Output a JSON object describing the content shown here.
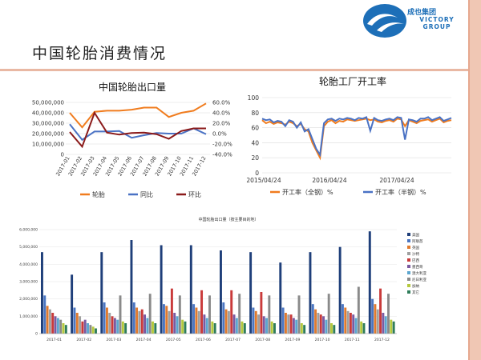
{
  "logo": {
    "cn": "成也集团",
    "en_line1": "VICTORY",
    "en_line2": "GROUP"
  },
  "slide": {
    "title": "中国轮胎消费情况"
  },
  "chart_data": [
    {
      "type": "line",
      "title": "中国轮胎出口量",
      "categories": [
        "2017-01",
        "2017-02",
        "2017-03",
        "2017-04",
        "2017-05",
        "2017-06",
        "2017-07",
        "2017-08",
        "2017-09",
        "2017-10",
        "2017-11",
        "2017-12"
      ],
      "y_left": {
        "ticks": [
          "0",
          "10,000,000",
          "20,000,000",
          "30,000,000",
          "40,000,000",
          "50,000,000"
        ],
        "range": [
          0,
          50000000
        ]
      },
      "y_right": {
        "ticks": [
          "-40.0%",
          "-20.0%",
          "0.0%",
          "20.0%",
          "40.0%",
          "60.0%"
        ],
        "range": [
          -40,
          60
        ]
      },
      "series": [
        {
          "name": "轮胎",
          "axis": "left",
          "color": "#f07c1e",
          "values": [
            40000000,
            26000000,
            41000000,
            42000000,
            42000000,
            43000000,
            45000000,
            45000000,
            36000000,
            40000000,
            42000000,
            49000000
          ]
        },
        {
          "name": "同比",
          "axis": "right",
          "color": "#4a72c4",
          "values": [
            18,
            -12,
            4,
            4,
            5,
            -8,
            -3,
            1,
            0,
            0,
            10,
            -1
          ]
        },
        {
          "name": "环比",
          "axis": "right",
          "color": "#8b1a1a",
          "values": [
            3,
            -25,
            40,
            2,
            -2,
            1,
            2,
            -1,
            -10,
            5,
            10,
            10
          ]
        }
      ]
    },
    {
      "type": "line",
      "title": "轮胎工厂开工率",
      "x_ticks": [
        "2015/04/24",
        "2016/04/24",
        "2017/04/24"
      ],
      "y_ticks": [
        "0",
        "20",
        "40",
        "60",
        "80",
        "100"
      ],
      "ylim": [
        0,
        100
      ],
      "series": [
        {
          "name": "开工率（全钢）%",
          "color": "#f07c1e",
          "values": [
            70,
            66,
            68,
            65,
            67,
            66,
            64,
            68,
            66,
            62,
            65,
            58,
            55,
            40,
            30,
            20,
            62,
            68,
            70,
            66,
            69,
            68,
            71,
            70,
            69,
            70,
            71,
            72,
            70,
            71,
            68,
            67,
            69,
            70,
            68,
            72,
            71,
            62,
            70,
            68,
            66,
            69,
            70,
            71,
            68,
            70,
            72,
            67,
            69,
            70
          ]
        },
        {
          "name": "开工率（半钢）%",
          "color": "#4a72c4",
          "values": [
            72,
            70,
            71,
            67,
            69,
            68,
            62,
            70,
            68,
            60,
            67,
            55,
            58,
            45,
            32,
            24,
            66,
            71,
            72,
            69,
            72,
            71,
            73,
            72,
            70,
            73,
            72,
            74,
            56,
            73,
            70,
            69,
            71,
            72,
            70,
            74,
            73,
            44,
            71,
            70,
            68,
            72,
            72,
            74,
            70,
            72,
            74,
            69,
            71,
            73
          ]
        }
      ]
    },
    {
      "type": "bar",
      "title": "中国轮胎出口量（按主要目的地）",
      "categories": [
        "2017-01",
        "2017-02",
        "2017-03",
        "2017-04",
        "2017-05",
        "2017-06",
        "2017-07",
        "2017-08",
        "2017-09",
        "2017-10",
        "2017-11",
        "2017-12"
      ],
      "y_ticks": [
        "0",
        "1,000,000",
        "2,000,000",
        "3,000,000",
        "4,000,000",
        "5,000,000",
        "6,000,000"
      ],
      "ylim": [
        0,
        6000000
      ],
      "series": [
        {
          "name": "美国",
          "color": "#1f3f7a",
          "values": [
            4700000,
            3400000,
            4700000,
            5400000,
            5100000,
            5100000,
            4800000,
            4700000,
            4100000,
            4700000,
            5000000,
            5900000
          ]
        },
        {
          "name": "阿联酋",
          "color": "#4b76c2",
          "values": [
            2200000,
            1500000,
            1800000,
            1800000,
            1700000,
            1700000,
            1800000,
            1500000,
            1500000,
            1700000,
            1700000,
            2000000
          ]
        },
        {
          "name": "英国",
          "color": "#e07a2e",
          "values": [
            1600000,
            1200000,
            1500000,
            1500000,
            1600000,
            1500000,
            1400000,
            1300000,
            1200000,
            1400000,
            1500000,
            1700000
          ]
        },
        {
          "name": "沙特",
          "color": "#a0a0a0",
          "values": [
            1400000,
            1000000,
            1200000,
            1300000,
            1300000,
            1300000,
            1300000,
            1100000,
            1100000,
            1200000,
            1300000,
            1400000
          ]
        },
        {
          "name": "巴西",
          "color": "#c93a3a",
          "values": [
            1200000,
            700000,
            1000000,
            1400000,
            2600000,
            2500000,
            2500000,
            2400000,
            1100000,
            1100000,
            1200000,
            2600000
          ]
        },
        {
          "name": "墨西哥",
          "color": "#7b5aa0",
          "values": [
            1000000,
            800000,
            900000,
            1100000,
            1200000,
            1100000,
            1100000,
            1000000,
            900000,
            1000000,
            1100000,
            1200000
          ]
        },
        {
          "name": "澳大利亚",
          "color": "#5ca6cf",
          "values": [
            900000,
            600000,
            800000,
            900000,
            1000000,
            900000,
            900000,
            900000,
            800000,
            800000,
            900000,
            1000000
          ]
        },
        {
          "name": "尼日利亚",
          "color": "#8a8a8a",
          "values": [
            800000,
            500000,
            2200000,
            2300000,
            2200000,
            2200000,
            2300000,
            2200000,
            2200000,
            2300000,
            2700000,
            2300000
          ]
        },
        {
          "name": "加纳",
          "color": "#b5c93d",
          "values": [
            600000,
            400000,
            700000,
            700000,
            800000,
            700000,
            700000,
            700000,
            600000,
            600000,
            700000,
            800000
          ]
        },
        {
          "name": "其它",
          "color": "#2f7d5a",
          "values": [
            500000,
            300000,
            600000,
            600000,
            700000,
            600000,
            600000,
            600000,
            500000,
            500000,
            600000,
            700000
          ]
        }
      ]
    }
  ]
}
